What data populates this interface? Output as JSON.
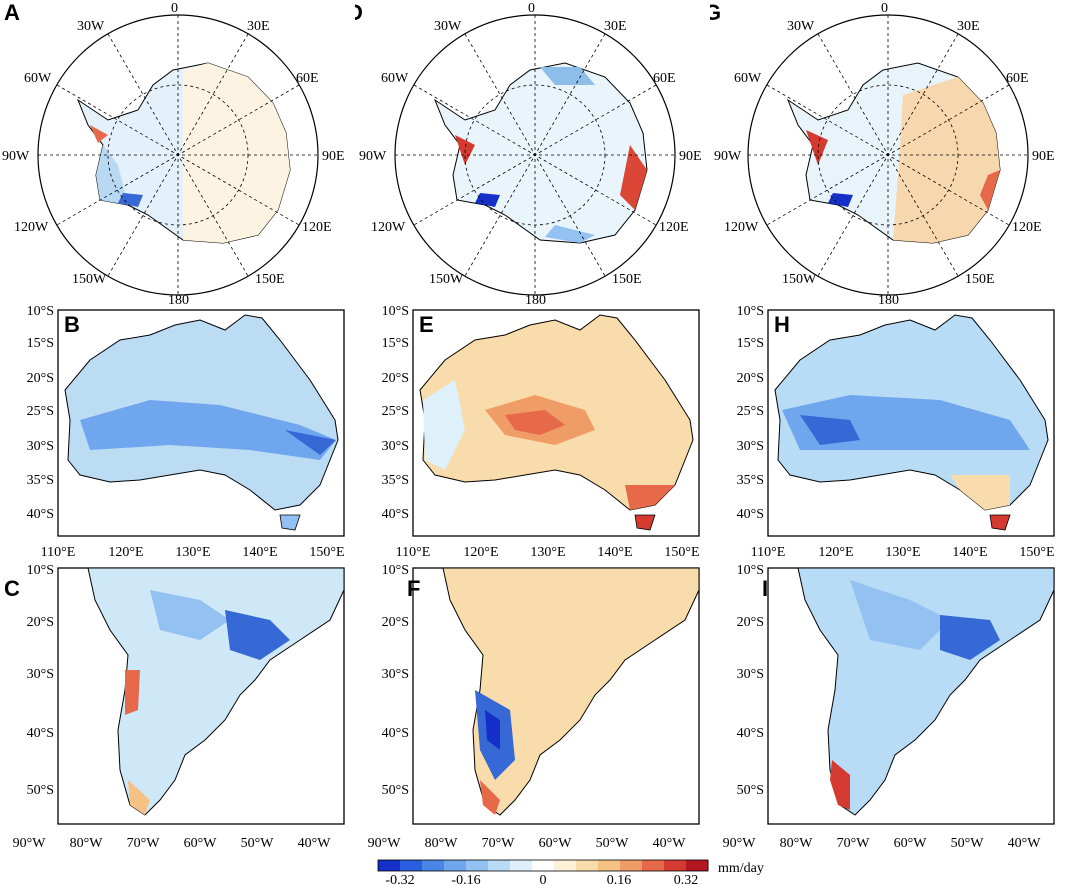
{
  "panel_labels": [
    "A",
    "B",
    "C",
    "D",
    "E",
    "F",
    "G",
    "H",
    "I"
  ],
  "polar_labels": [
    "0",
    "30E",
    "60E",
    "90E",
    "120E",
    "150E",
    "180",
    "150W",
    "120W",
    "90W",
    "60W",
    "30W"
  ],
  "aus_lat_ticks": [
    "10°S",
    "15°S",
    "20°S",
    "25°S",
    "30°S",
    "35°S",
    "40°S"
  ],
  "aus_lon_ticks": [
    "110°E",
    "120°E",
    "130°E",
    "140°E",
    "150°E"
  ],
  "sa_lat_ticks": [
    "10°S",
    "20°S",
    "30°S",
    "40°S",
    "50°S"
  ],
  "sa_lon_ticks": [
    "90°W",
    "80°W",
    "70°W",
    "60°W",
    "50°W",
    "40°W"
  ],
  "colorbar": {
    "labels": [
      "-0.32",
      "-0.16",
      "0",
      "0.16",
      "0.32"
    ],
    "unit": "mm/day",
    "colors": [
      "#1530c8",
      "#2a5ee0",
      "#4a86e8",
      "#6fa6ee",
      "#93c2f2",
      "#b8dcf6",
      "#def0fa",
      "#ffffff",
      "#fdf1d8",
      "#f9dcab",
      "#f5c185",
      "#ef9c66",
      "#e6694a",
      "#d43a2f",
      "#b51722"
    ]
  },
  "colors": {
    "border": "#000000",
    "light_blue": "#cfe8f7",
    "mid_blue": "#8dbde9",
    "deep_blue": "#3668d6",
    "cream": "#fbe9c9",
    "tan": "#f3c48c",
    "red": "#dc4637"
  }
}
